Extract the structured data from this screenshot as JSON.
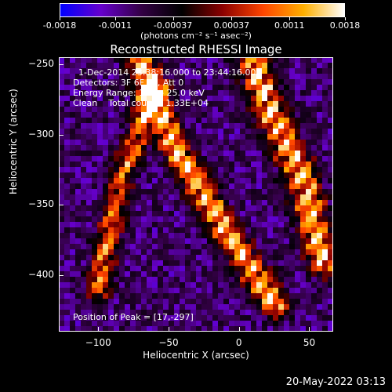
{
  "colorbar": {
    "tick_labels": [
      "-0.0018",
      "-0.0011",
      "-0.00037",
      "0.00037",
      "0.0011",
      "0.0018"
    ],
    "tick_values": [
      -0.0018,
      -0.0011,
      -0.00037,
      0.00037,
      0.0011,
      0.0018
    ],
    "range": [
      -0.0018,
      0.0018
    ],
    "units": "(photons cm⁻² s⁻¹ asec⁻²)",
    "colors": [
      "#0000ff",
      "#6600cc",
      "#330044",
      "#000000",
      "#8b0000",
      "#ff4500",
      "#ffb000",
      "#ffffff"
    ]
  },
  "info": {
    "line1": "1-Dec-2014 23:38:16.000 to 23:44:16.000",
    "line2": "Detectors: 3F 6F 9F, Att 0",
    "line3": "Energy Range: 12.0 - 25.0 keV",
    "line4": "Clean    Total counts: 1.33E+04",
    "peak": "Position of Peak = [17,-297]"
  },
  "timestamp": "20-May-2022 03:13",
  "chart_data": {
    "type": "heatmap",
    "title": "Reconstructed RHESSI Image",
    "xlabel": "Heliocentric X (arcsec)",
    "ylabel": "Heliocentric Y (arcsec)",
    "xlim": [
      -128,
      67
    ],
    "ylim": [
      -440,
      -245
    ],
    "xticks": [
      -100,
      -50,
      0,
      50
    ],
    "xtick_labels": [
      "−100",
      "−50",
      "0",
      "50"
    ],
    "yticks": [
      -250,
      -300,
      -350,
      -400
    ],
    "ytick_labels": [
      "−250",
      "−300",
      "−350",
      "−400"
    ],
    "peak_position": [
      17,
      -297
    ],
    "bands": [
      {
        "name": "left ridge",
        "path": [
          [
            -60,
            -265
          ],
          [
            -85,
            -335
          ],
          [
            -100,
            -410
          ]
        ],
        "width": 12,
        "peak": 0.0014
      },
      {
        "name": "center ridge",
        "path": [
          [
            -70,
            -250
          ],
          [
            -45,
            -310
          ],
          [
            -5,
            -375
          ],
          [
            25,
            -420
          ]
        ],
        "width": 14,
        "peak": 0.0018
      },
      {
        "name": "right ridge",
        "path": [
          [
            10,
            -250
          ],
          [
            25,
            -290
          ],
          [
            45,
            -330
          ],
          [
            60,
            -390
          ]
        ],
        "width": 16,
        "peak": 0.0018
      }
    ]
  }
}
